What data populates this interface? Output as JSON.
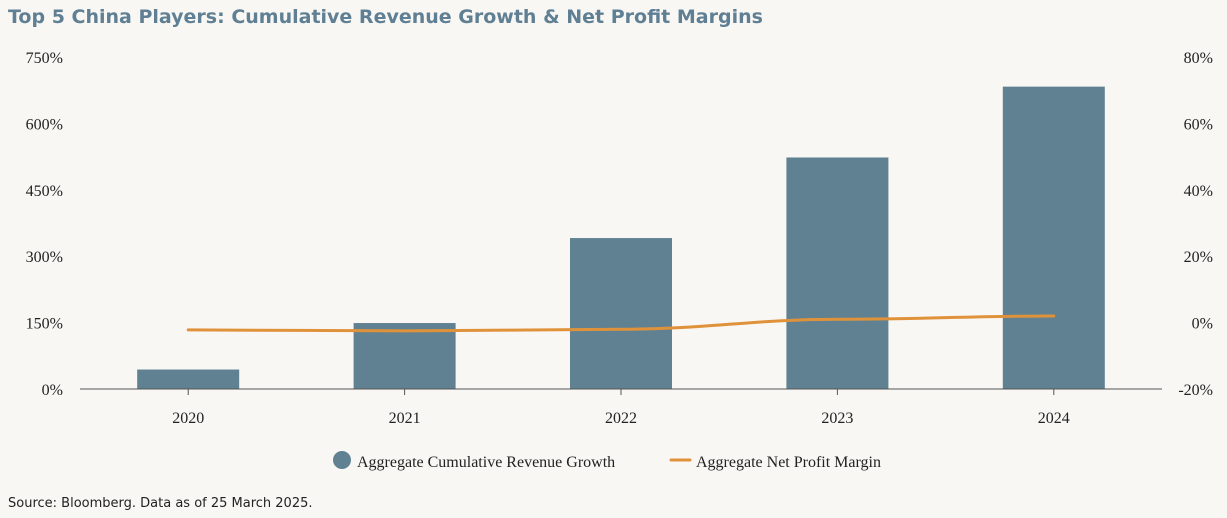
{
  "title": "Top 5 China Players: Cumulative Revenue Growth & Net Profit Margins",
  "source": "Source: Bloomberg. Data as of 25 March 2025.",
  "colors": {
    "bar": "#5f8192",
    "line": "#e0923a",
    "axis": "#555555",
    "text": "#222222"
  },
  "chart_data": {
    "type": "bar",
    "categories": [
      "2020",
      "2021",
      "2022",
      "2023",
      "2024"
    ],
    "series": [
      {
        "name": "Aggregate Cumulative Revenue Growth",
        "type": "bar",
        "axis": "left",
        "values": [
          44,
          149,
          341,
          523,
          683
        ]
      },
      {
        "name": "Aggregate Net Profit Margin",
        "type": "line",
        "axis": "right",
        "values": [
          -2.2,
          -2.5,
          -2.0,
          1.0,
          2.0
        ]
      }
    ],
    "y_left": {
      "min": 0,
      "max": 750,
      "ticks": [
        "0%",
        "150%",
        "300%",
        "450%",
        "600%",
        "750%"
      ]
    },
    "y_right": {
      "min": -20,
      "max": 80,
      "ticks": [
        "-20%",
        "0%",
        "20%",
        "40%",
        "60%",
        "80%"
      ]
    },
    "grid": false,
    "legend_position": "bottom"
  }
}
